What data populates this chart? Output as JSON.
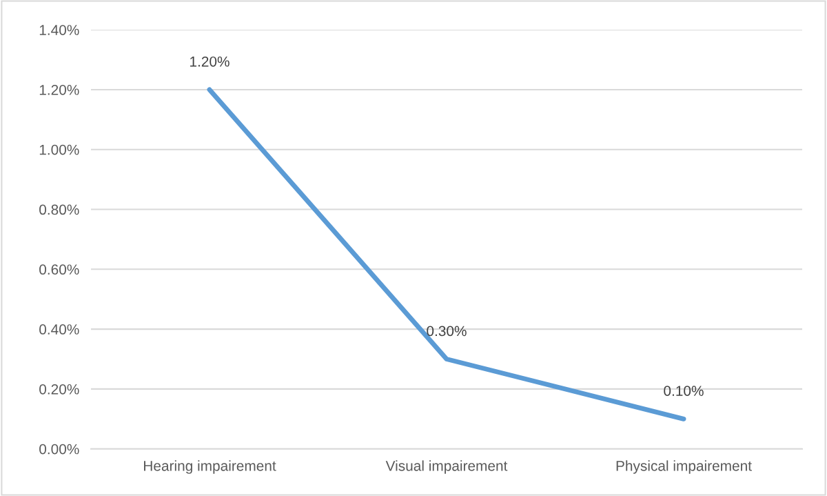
{
  "chart_data": {
    "type": "line",
    "categories": [
      "Hearing impairement",
      "Visual impairement",
      "Physical impairement"
    ],
    "series": [
      {
        "color": "#5b9bd5",
        "values": [
          1.2,
          0.3,
          0.1
        ],
        "value_labels": [
          "1.20%",
          "0.30%",
          "0.10%"
        ]
      }
    ],
    "ylim": [
      0,
      1.4
    ],
    "yticks": [
      {
        "value": 0,
        "label": "0.00%"
      },
      {
        "value": 0.2,
        "label": "0.20%"
      },
      {
        "value": 0.4,
        "label": "0.40%"
      },
      {
        "value": 0.6,
        "label": "0.60%"
      },
      {
        "value": 0.8,
        "label": "0.80%"
      },
      {
        "value": 1.0,
        "label": "1.00%"
      },
      {
        "value": 1.2,
        "label": "1.20%"
      },
      {
        "value": 1.4,
        "label": "1.40%"
      }
    ],
    "grid": "y",
    "marker": "none",
    "line_style": "solid"
  }
}
